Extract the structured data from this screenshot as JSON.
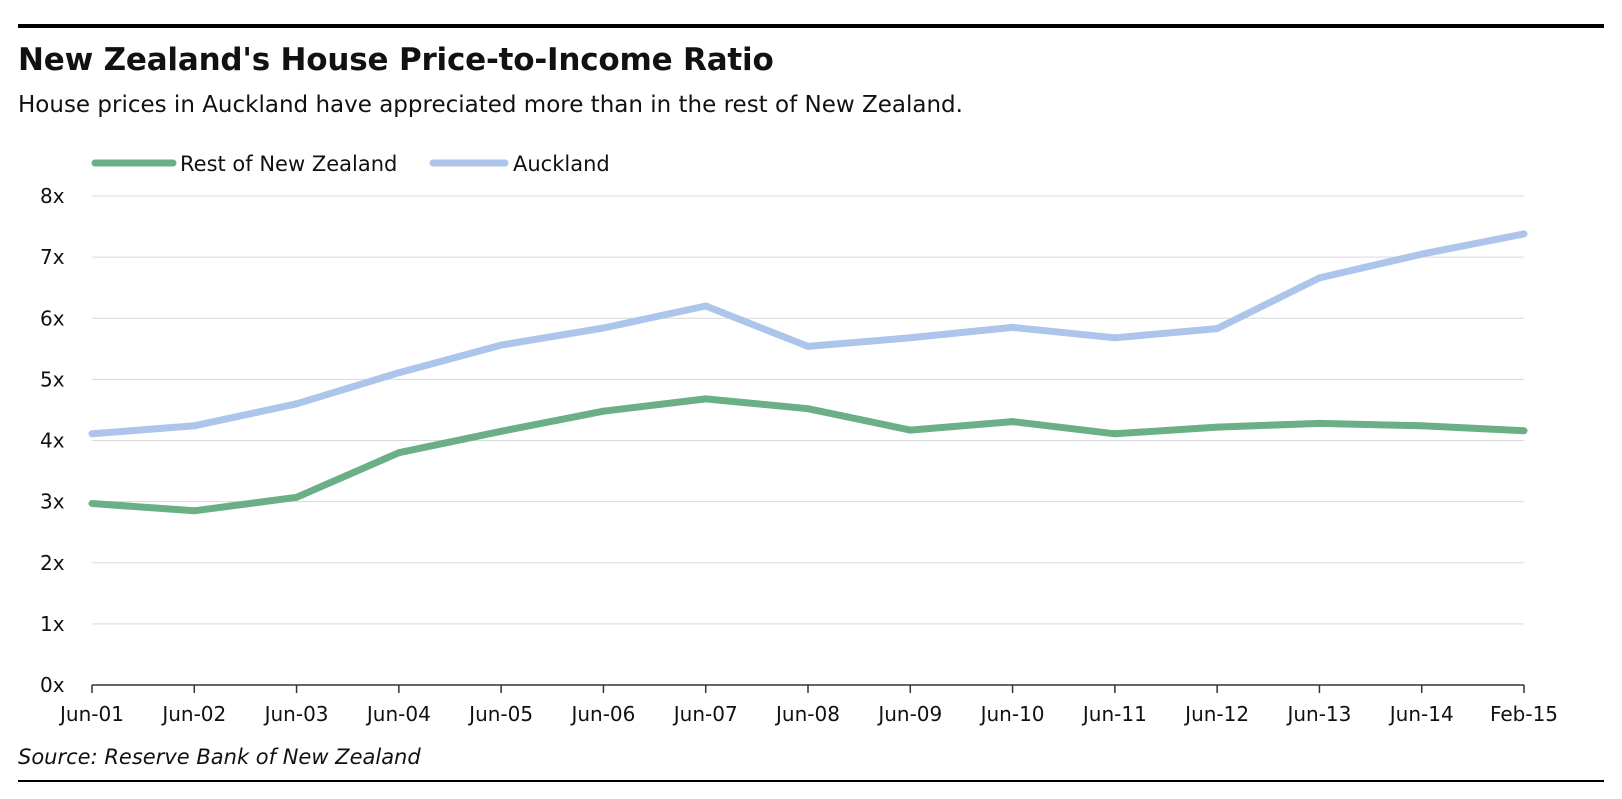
{
  "header": {
    "title": "New Zealand's House Price-to-Income Ratio",
    "subtitle": "House prices in Auckland have appreciated more than in the rest of New Zealand."
  },
  "footer": {
    "source": "Source: Reserve Bank of New Zealand"
  },
  "chart_data": {
    "type": "line",
    "title": "New Zealand's House Price-to-Income Ratio",
    "subtitle": "House prices in Auckland have appreciated more than in the rest of New Zealand.",
    "xlabel": "",
    "ylabel": "",
    "categories": [
      "Jun-01",
      "Jun-02",
      "Jun-03",
      "Jun-04",
      "Jun-05",
      "Jun-06",
      "Jun-07",
      "Jun-08",
      "Jun-09",
      "Jun-10",
      "Jun-11",
      "Jun-12",
      "Jun-13",
      "Jun-14",
      "Feb-15"
    ],
    "ylim": [
      0,
      8
    ],
    "yticks": [
      0,
      1,
      2,
      3,
      4,
      5,
      6,
      7,
      8
    ],
    "ytick_labels": [
      "0x",
      "1x",
      "2x",
      "3x",
      "4x",
      "5x",
      "6x",
      "7x",
      "8x"
    ],
    "grid": true,
    "legend_position": "top-left",
    "series": [
      {
        "name": "Rest of New Zealand",
        "color": "#6aaf85",
        "values": [
          2.97,
          2.85,
          3.07,
          3.8,
          4.15,
          4.48,
          4.68,
          4.52,
          4.17,
          4.31,
          4.11,
          4.22,
          4.28,
          4.24,
          4.16
        ]
      },
      {
        "name": "Auckland",
        "color": "#adc5ea",
        "values": [
          4.11,
          4.24,
          4.6,
          5.11,
          5.56,
          5.84,
          6.2,
          5.54,
          5.68,
          5.85,
          5.68,
          5.83,
          6.66,
          7.05,
          7.38
        ]
      }
    ],
    "source": "Source: Reserve Bank of New Zealand"
  }
}
